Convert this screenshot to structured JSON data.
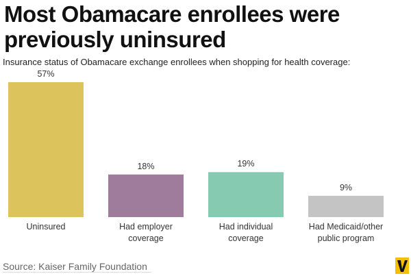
{
  "chart_data": {
    "type": "bar",
    "title": "Most Obamacare enrollees were previously uninsured",
    "subtitle": "Insurance status of Obamacare exchange enrollees when shopping for health coverage:",
    "categories": [
      "Uninsured",
      "Had employer coverage",
      "Had individual coverage",
      "Had Medicaid/other public program"
    ],
    "values": [
      57,
      18,
      19,
      9
    ],
    "value_labels": [
      "57%",
      "18%",
      "19%",
      "9%"
    ],
    "colors": [
      "#dcc35c",
      "#9f7b9c",
      "#86cab1",
      "#c4c4c4"
    ],
    "source": "Source: Kaiser Family Foundation"
  }
}
